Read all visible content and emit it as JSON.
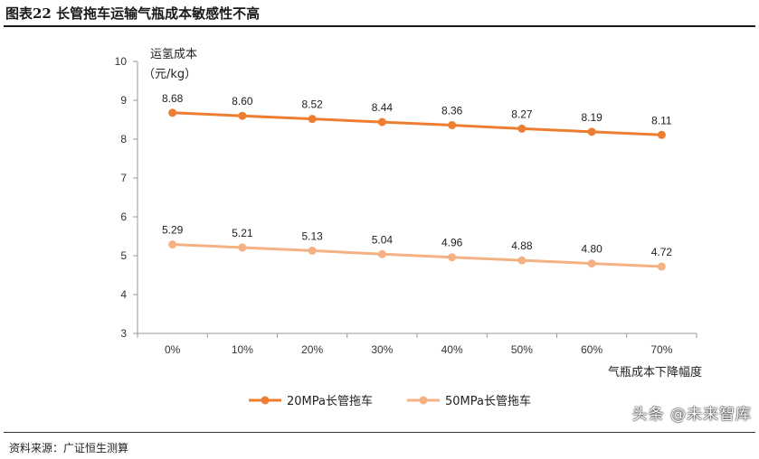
{
  "header": {
    "title": "图表22 长管拖车运输气瓶成本敏感性不高"
  },
  "footer": {
    "source": "资料来源：广证恒生测算",
    "watermark": "头条 @未来智库"
  },
  "chart_data": {
    "type": "line",
    "title": "",
    "ylabel_line1": "运氢成本",
    "ylabel_line2": "（元/kg）",
    "xlabel": "气瓶成本下降幅度",
    "categories": [
      "0%",
      "10%",
      "20%",
      "30%",
      "40%",
      "50%",
      "60%",
      "70%"
    ],
    "ylim": [
      3,
      10
    ],
    "yticks": [
      3,
      4,
      5,
      6,
      7,
      8,
      9,
      10
    ],
    "grid": false,
    "legend_position": "bottom",
    "series": [
      {
        "name": "20MPa长管拖车",
        "color": "#ED7D31",
        "values": [
          8.68,
          8.6,
          8.52,
          8.44,
          8.36,
          8.27,
          8.19,
          8.11
        ],
        "labels": [
          "8.68",
          "8.60",
          "8.52",
          "8.44",
          "8.36",
          "8.27",
          "8.19",
          "8.11"
        ]
      },
      {
        "name": "50MPa长管拖车",
        "color": "#F4B183",
        "values": [
          5.29,
          5.21,
          5.13,
          5.04,
          4.96,
          4.88,
          4.8,
          4.72
        ],
        "labels": [
          "5.29",
          "5.21",
          "5.13",
          "5.04",
          "4.96",
          "4.88",
          "4.80",
          "4.72"
        ]
      }
    ]
  }
}
